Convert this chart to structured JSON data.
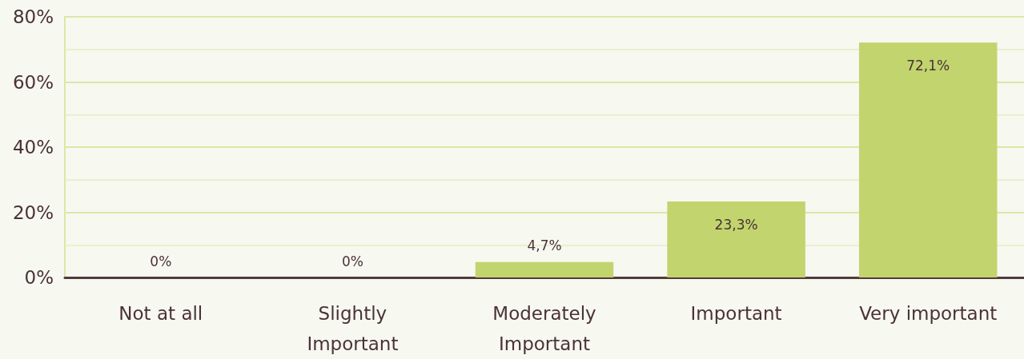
{
  "chart_data": {
    "type": "bar",
    "categories": [
      "Not at all",
      "Slightly\nImportant",
      "Moderately\nImportant",
      "Important",
      "Very important"
    ],
    "values": [
      0,
      0,
      4.7,
      23.3,
      72.1
    ],
    "value_labels": [
      "0%",
      "0%",
      "4,7%",
      "23,3%",
      "72,1%"
    ],
    "color": "#c2d46e",
    "ylim": [
      0,
      80
    ],
    "yticks": [
      {
        "value": 0,
        "label": "0%"
      },
      {
        "value": 10,
        "label": null
      },
      {
        "value": 20,
        "label": "20%"
      },
      {
        "value": 30,
        "label": null
      },
      {
        "value": 40,
        "label": "40%"
      },
      {
        "value": 50,
        "label": null
      },
      {
        "value": 60,
        "label": "60%"
      },
      {
        "value": 70,
        "label": null
      },
      {
        "value": 80,
        "label": "80%"
      }
    ],
    "grid": "y"
  }
}
